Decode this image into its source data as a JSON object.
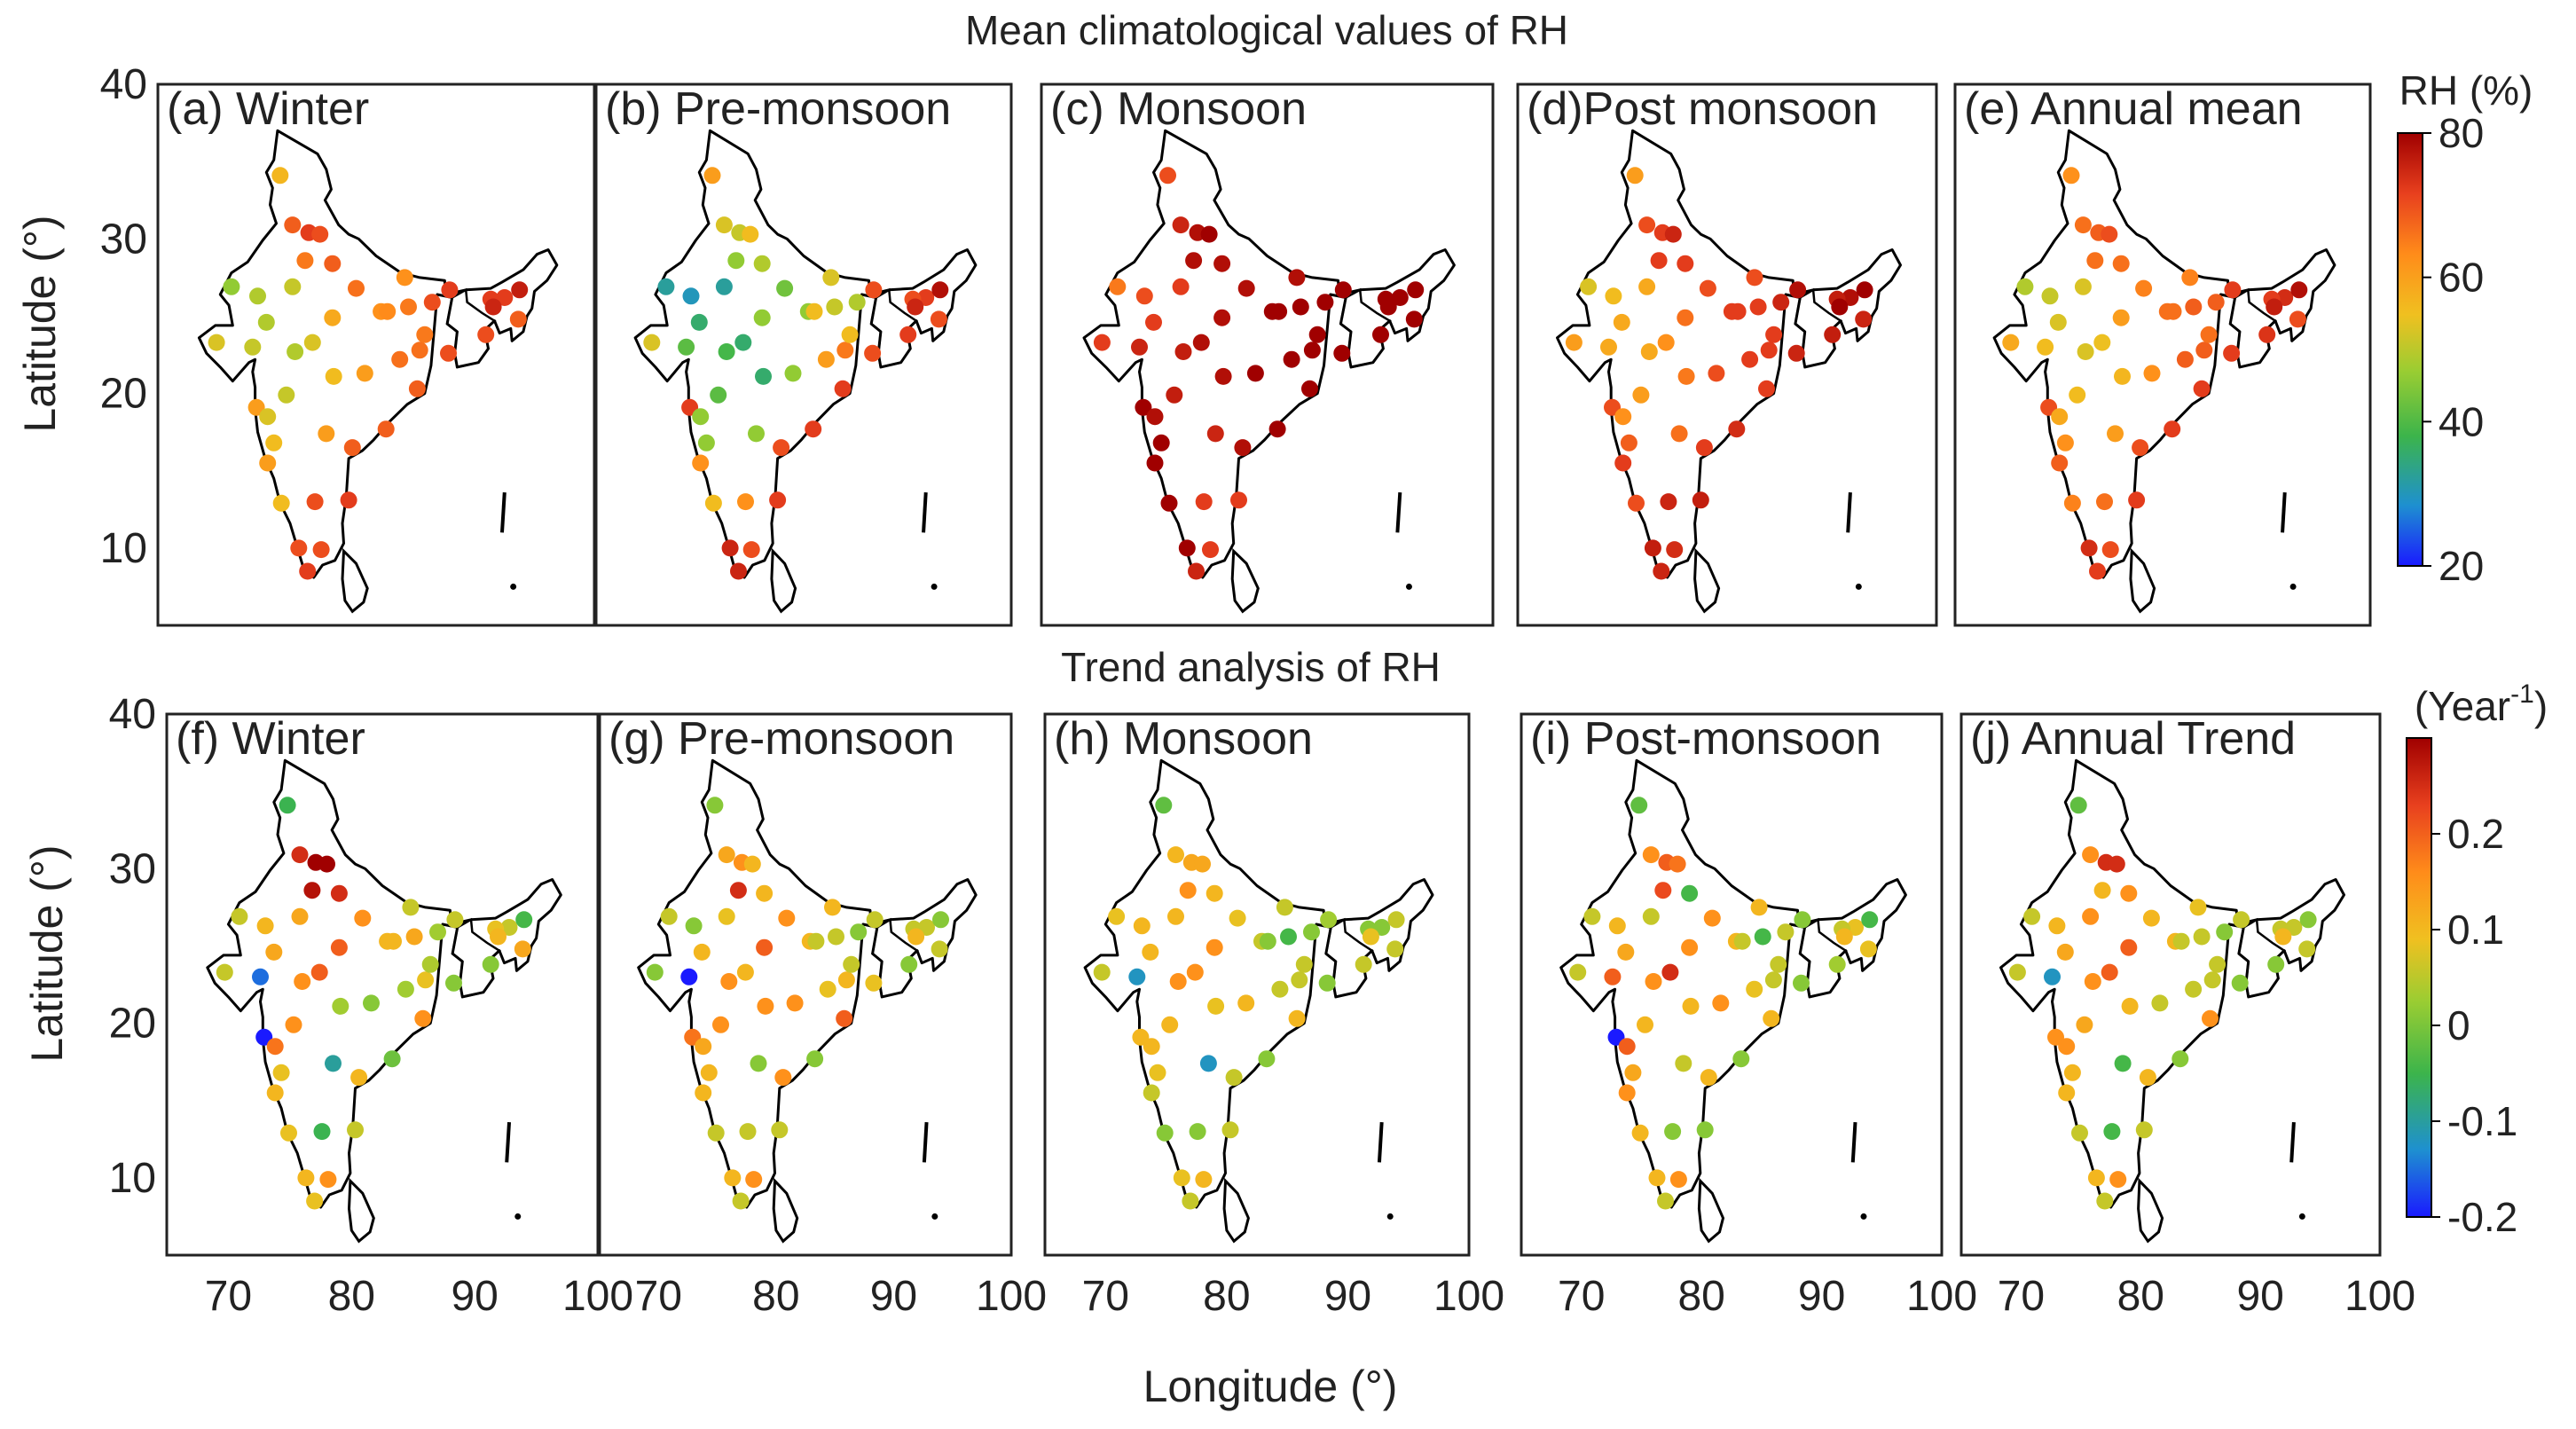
{
  "titles": {
    "top": "Mean climatological values of RH",
    "bottom": "Trend analysis of RH"
  },
  "panels_top": [
    "(a) Winter",
    "(b) Pre-monsoon",
    "(c) Monsoon",
    "(d)Post monsoon",
    "(e) Annual mean"
  ],
  "panels_bottom": [
    "(f) Winter",
    "(g) Pre-monsoon",
    "(h) Monsoon",
    "(i) Post-monsoon",
    "(j) Annual Trend"
  ],
  "axes": {
    "ylabel": "Latitude (°)",
    "xlabel": "Longitude (°)",
    "lat_ticks": [
      "40",
      "30",
      "20",
      "10"
    ],
    "lon_ticks": [
      "70",
      "80",
      "90",
      "100"
    ]
  },
  "colorbar_top": {
    "title": "RH (%)",
    "ticks": [
      "80",
      "60",
      "40",
      "20"
    ],
    "min": 20,
    "max": 80
  },
  "colorbar_bottom": {
    "title": "(Year",
    "title_sup": "-1",
    "title_end": ")",
    "ticks": [
      "0.2",
      "0.1",
      "0",
      "-0.1",
      "-0.2"
    ],
    "min": -0.2,
    "max": 0.3
  },
  "colors": {
    "cmap": [
      "#1a1aff",
      "#1e90d0",
      "#3cb44b",
      "#9acd32",
      "#f0c020",
      "#ff8c1a",
      "#e8401e",
      "#a00000"
    ],
    "outline": "#000000"
  },
  "chart_data": [
    {
      "type": "scatter",
      "group": "mean",
      "units": "RH (%)",
      "stations": [
        [
          74.8,
          34.1
        ],
        [
          75.8,
          30.9
        ],
        [
          77.1,
          30.4
        ],
        [
          76.8,
          28.6
        ],
        [
          78.0,
          30.3
        ],
        [
          79.0,
          28.4
        ],
        [
          80.9,
          26.8
        ],
        [
          82.9,
          25.3
        ],
        [
          85.1,
          25.6
        ],
        [
          87.0,
          25.9
        ],
        [
          88.4,
          26.7
        ],
        [
          88.3,
          22.6
        ],
        [
          86.0,
          22.8
        ],
        [
          85.8,
          20.3
        ],
        [
          83.3,
          17.7
        ],
        [
          81.6,
          21.3
        ],
        [
          79.1,
          21.1
        ],
        [
          77.4,
          23.3
        ],
        [
          75.8,
          26.9
        ],
        [
          73.0,
          26.3
        ],
        [
          70.9,
          26.9
        ],
        [
          72.6,
          23.0
        ],
        [
          69.7,
          23.3
        ],
        [
          72.9,
          19.1
        ],
        [
          73.8,
          18.5
        ],
        [
          73.8,
          15.5
        ],
        [
          74.9,
          12.9
        ],
        [
          77.6,
          13.0
        ],
        [
          80.3,
          13.1
        ],
        [
          76.3,
          10.0
        ],
        [
          77.0,
          8.5
        ],
        [
          78.1,
          9.9
        ],
        [
          80.6,
          16.5
        ],
        [
          78.5,
          17.4
        ],
        [
          75.3,
          19.9
        ],
        [
          79.0,
          24.9
        ],
        [
          92.8,
          26.2
        ],
        [
          94.0,
          26.7
        ],
        [
          91.7,
          26.1
        ],
        [
          91.9,
          25.6
        ],
        [
          91.3,
          23.8
        ],
        [
          93.9,
          24.8
        ],
        [
          86.4,
          23.8
        ],
        [
          84.8,
          27.5
        ],
        [
          83.4,
          25.3
        ],
        [
          84.4,
          22.2
        ],
        [
          76.0,
          22.7
        ],
        [
          73.7,
          24.6
        ],
        [
          74.3,
          16.8
        ]
      ],
      "series": [
        {
          "name": "(a) Winter",
          "values": [
            56,
            68,
            72,
            65,
            70,
            68,
            66,
            62,
            65,
            70,
            72,
            70,
            66,
            68,
            68,
            60,
            55,
            52,
            50,
            48,
            45,
            50,
            52,
            60,
            52,
            60,
            55,
            70,
            72,
            70,
            72,
            70,
            68,
            60,
            50,
            58,
            72,
            76,
            72,
            75,
            70,
            68,
            65,
            62,
            63,
            66,
            48,
            48,
            55
          ]
        },
        {
          "name": "(b) Pre-monsoon",
          "values": [
            60,
            52,
            50,
            45,
            55,
            48,
            42,
            45,
            50,
            48,
            70,
            70,
            65,
            72,
            72,
            45,
            35,
            35,
            32,
            30,
            32,
            40,
            52,
            72,
            45,
            62,
            55,
            62,
            72,
            75,
            75,
            70,
            70,
            45,
            40,
            45,
            72,
            78,
            70,
            75,
            72,
            70,
            55,
            52,
            55,
            60,
            38,
            35,
            45
          ]
        },
        {
          "name": "(c) Monsoon",
          "values": [
            70,
            75,
            78,
            78,
            80,
            78,
            78,
            80,
            80,
            80,
            80,
            80,
            80,
            80,
            80,
            80,
            78,
            78,
            72,
            70,
            65,
            75,
            72,
            80,
            78,
            80,
            80,
            72,
            72,
            80,
            75,
            72,
            78,
            75,
            76,
            78,
            80,
            80,
            80,
            80,
            80,
            80,
            80,
            78,
            80,
            80,
            76,
            72,
            80
          ]
        },
        {
          "name": "(d)Post monsoon",
          "values": [
            60,
            70,
            72,
            72,
            75,
            72,
            70,
            72,
            72,
            75,
            78,
            75,
            72,
            72,
            74,
            70,
            65,
            62,
            58,
            55,
            52,
            58,
            60,
            70,
            62,
            72,
            70,
            75,
            76,
            76,
            75,
            74,
            72,
            66,
            60,
            66,
            78,
            80,
            76,
            80,
            76,
            75,
            72,
            70,
            72,
            72,
            58,
            58,
            68
          ]
        },
        {
          "name": "(e) Annual mean",
          "values": [
            62,
            66,
            68,
            66,
            70,
            66,
            64,
            66,
            68,
            68,
            72,
            72,
            68,
            72,
            72,
            62,
            56,
            54,
            52,
            50,
            48,
            55,
            58,
            70,
            58,
            68,
            64,
            66,
            72,
            74,
            72,
            70,
            70,
            60,
            55,
            60,
            74,
            78,
            72,
            76,
            73,
            70,
            66,
            64,
            66,
            68,
            52,
            52,
            62
          ]
        }
      ]
    },
    {
      "type": "scatter",
      "group": "trend",
      "units": "Year-1",
      "stations": [
        [
          74.8,
          34.1
        ],
        [
          75.8,
          30.9
        ],
        [
          77.1,
          30.4
        ],
        [
          76.8,
          28.6
        ],
        [
          78.0,
          30.3
        ],
        [
          79.0,
          28.4
        ],
        [
          80.9,
          26.8
        ],
        [
          82.9,
          25.3
        ],
        [
          85.1,
          25.6
        ],
        [
          87.0,
          25.9
        ],
        [
          88.4,
          26.7
        ],
        [
          88.3,
          22.6
        ],
        [
          86.0,
          22.8
        ],
        [
          85.8,
          20.3
        ],
        [
          83.3,
          17.7
        ],
        [
          81.6,
          21.3
        ],
        [
          79.1,
          21.1
        ],
        [
          77.4,
          23.3
        ],
        [
          75.8,
          26.9
        ],
        [
          73.0,
          26.3
        ],
        [
          70.9,
          26.9
        ],
        [
          72.6,
          23.0
        ],
        [
          69.7,
          23.3
        ],
        [
          72.9,
          19.1
        ],
        [
          73.8,
          18.5
        ],
        [
          73.8,
          15.5
        ],
        [
          74.9,
          12.9
        ],
        [
          77.6,
          13.0
        ],
        [
          80.3,
          13.1
        ],
        [
          76.3,
          10.0
        ],
        [
          77.0,
          8.5
        ],
        [
          78.1,
          9.9
        ],
        [
          80.6,
          16.5
        ],
        [
          78.5,
          17.4
        ],
        [
          75.3,
          19.9
        ],
        [
          79.0,
          24.9
        ],
        [
          92.8,
          26.2
        ],
        [
          94.0,
          26.7
        ],
        [
          91.7,
          26.1
        ],
        [
          91.9,
          25.6
        ],
        [
          91.3,
          23.8
        ],
        [
          93.9,
          24.8
        ],
        [
          86.4,
          23.8
        ],
        [
          84.8,
          27.5
        ],
        [
          83.4,
          25.3
        ],
        [
          84.4,
          22.2
        ],
        [
          76.0,
          22.7
        ],
        [
          73.7,
          24.6
        ],
        [
          74.3,
          16.8
        ]
      ],
      "series": [
        {
          "name": "(f) Winter",
          "values": [
            -0.06,
            0.25,
            0.3,
            0.28,
            0.3,
            0.25,
            0.15,
            0.1,
            0.12,
            0.02,
            0.05,
            0.0,
            0.08,
            0.15,
            -0.02,
            0.0,
            0.02,
            0.2,
            0.12,
            0.1,
            0.05,
            -0.15,
            0.05,
            -0.2,
            0.18,
            0.1,
            0.08,
            -0.06,
            0.05,
            0.1,
            0.08,
            0.15,
            0.1,
            -0.1,
            0.15,
            0.2,
            0.05,
            -0.05,
            0.08,
            0.1,
            0.0,
            0.12,
            0.03,
            0.05,
            0.1,
            0.02,
            0.15,
            0.12,
            0.08
          ]
        },
        {
          "name": "(g) Pre-monsoon",
          "values": [
            0.0,
            0.12,
            0.15,
            0.25,
            0.1,
            0.1,
            0.15,
            0.1,
            0.05,
            0.0,
            0.05,
            0.08,
            0.1,
            0.2,
            0.0,
            0.15,
            0.15,
            0.1,
            0.08,
            0.0,
            0.05,
            -0.2,
            0.0,
            0.18,
            0.12,
            0.1,
            0.05,
            0.05,
            0.05,
            0.1,
            0.05,
            0.15,
            0.15,
            0.0,
            0.15,
            0.2,
            0.05,
            0.0,
            0.05,
            0.1,
            0.0,
            0.05,
            0.05,
            0.1,
            0.05,
            0.08,
            0.15,
            0.1,
            0.1
          ]
        },
        {
          "name": "(h) Monsoon",
          "values": [
            -0.03,
            0.1,
            0.12,
            0.15,
            0.12,
            0.1,
            0.08,
            0.05,
            -0.05,
            0.0,
            0.02,
            0.0,
            0.05,
            0.1,
            0.0,
            0.1,
            0.08,
            0.15,
            0.1,
            0.1,
            0.08,
            -0.12,
            0.05,
            0.1,
            0.1,
            0.05,
            0.0,
            0.0,
            0.05,
            0.08,
            0.05,
            0.1,
            0.05,
            -0.12,
            0.1,
            0.15,
            0.0,
            0.05,
            0.0,
            0.08,
            0.05,
            0.05,
            0.05,
            0.05,
            0.0,
            0.05,
            0.15,
            0.1,
            0.08
          ]
        },
        {
          "name": "(i) Post-monsoon",
          "values": [
            -0.03,
            0.15,
            0.2,
            0.22,
            0.18,
            -0.05,
            0.15,
            0.1,
            -0.05,
            0.05,
            0.0,
            0.0,
            0.05,
            0.1,
            0.0,
            0.15,
            0.1,
            0.25,
            0.05,
            0.1,
            0.05,
            0.2,
            0.05,
            -0.2,
            0.2,
            0.15,
            0.1,
            0.0,
            0.0,
            0.1,
            0.05,
            0.15,
            0.1,
            0.05,
            0.1,
            0.15,
            0.08,
            -0.05,
            0.05,
            0.1,
            0.02,
            0.08,
            0.05,
            0.1,
            0.05,
            0.08,
            0.15,
            0.12,
            0.12
          ]
        },
        {
          "name": "(j) Annual Trend",
          "values": [
            -0.03,
            0.15,
            0.25,
            0.1,
            0.25,
            0.15,
            0.1,
            0.1,
            0.05,
            0.0,
            0.05,
            0.0,
            0.05,
            0.15,
            0.0,
            0.05,
            0.1,
            0.2,
            0.15,
            0.1,
            0.05,
            -0.12,
            0.05,
            0.15,
            0.15,
            0.1,
            0.05,
            -0.05,
            0.05,
            0.1,
            0.05,
            0.15,
            0.1,
            -0.05,
            0.12,
            0.2,
            0.05,
            0.0,
            0.05,
            0.1,
            0.0,
            0.05,
            0.05,
            0.08,
            0.05,
            0.05,
            0.15,
            0.12,
            0.1
          ]
        }
      ]
    }
  ]
}
